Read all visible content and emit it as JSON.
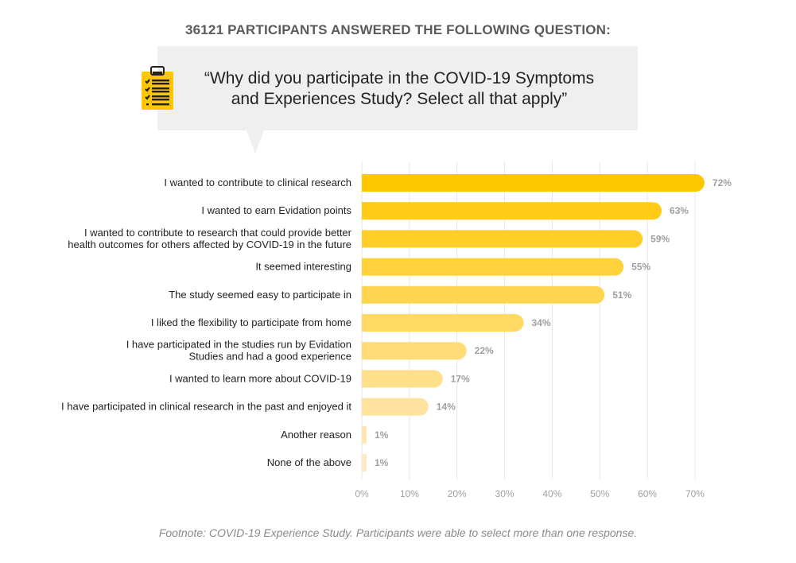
{
  "header": {
    "participants_line": "36121 PARTICIPANTS ANSWERED THE FOLLOWING QUESTION:",
    "question_line1": "“Why did you participate in the COVID-19 Symptoms",
    "question_line2_bold": "and Experiences Study?",
    "question_line2_light": " Select all that apply”",
    "icon": "clipboard-checklist-icon"
  },
  "footnote": "Footnote: COVID-19 Experience Study. Participants were able to select more than one response.",
  "chart_data": {
    "type": "bar",
    "orientation": "horizontal",
    "categories": [
      [
        "I wanted to contribute to clinical research"
      ],
      [
        "I wanted to earn Evidation points"
      ],
      [
        "I wanted to contribute to research that could provide better",
        "health outcomes for others affected by COVID-19 in the future"
      ],
      [
        "It seemed interesting"
      ],
      [
        "The study seemed easy to participate in"
      ],
      [
        "I liked the flexibility to participate from home"
      ],
      [
        "I have participated in the studies run by Evidation",
        "Studies and had a good experience"
      ],
      [
        "I wanted to learn more about COVID-19"
      ],
      [
        "I have participated in clinical research in the past and enjoyed it"
      ],
      [
        "Another reason"
      ],
      [
        "None of the above"
      ]
    ],
    "values": [
      72,
      63,
      59,
      55,
      51,
      34,
      22,
      17,
      14,
      1,
      1
    ],
    "value_labels": [
      "72%",
      "63%",
      "59%",
      "55%",
      "51%",
      "34%",
      "22%",
      "17%",
      "14%",
      "1%",
      "1%"
    ],
    "xticks": [
      "0%",
      "10%",
      "20%",
      "30%",
      "40%",
      "50%",
      "60%",
      "70%"
    ],
    "xlim": [
      0,
      72
    ],
    "grid": true,
    "colors": [
      "#FFC700",
      "#FFCB14",
      "#FFCE28",
      "#FFD23C",
      "#FFD54F",
      "#FFD963",
      "#FFDC77",
      "#FFE08A",
      "#FFE39E",
      "#FFE7B2",
      "#FFEAC5"
    ],
    "grid_color": "#e6e6e6"
  }
}
